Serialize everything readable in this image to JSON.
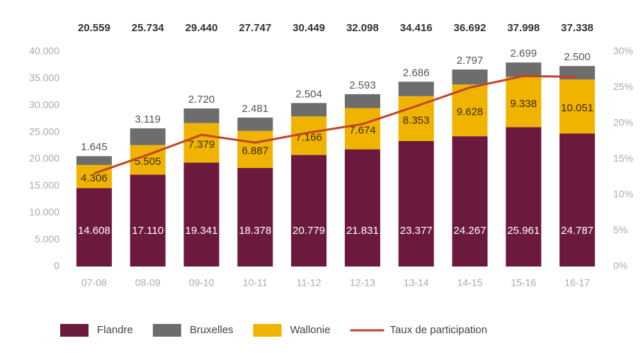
{
  "chart_data": {
    "type": "bar",
    "stacked": true,
    "categories": [
      "07-08",
      "08-09",
      "09-10",
      "10-11",
      "11-12",
      "12-13",
      "13-14",
      "14-15",
      "15-16",
      "16-17"
    ],
    "series": [
      {
        "name": "Flandre",
        "color": "#6b1a3e",
        "values": [
          14608,
          17110,
          19341,
          18378,
          20779,
          21831,
          23377,
          24267,
          25961,
          24787
        ],
        "value_labels": [
          "14.608",
          "17.110",
          "19.341",
          "18.378",
          "20.779",
          "21.831",
          "23.377",
          "24.267",
          "25.961",
          "24.787"
        ]
      },
      {
        "name": "Wallonie",
        "color": "#f0b400",
        "values": [
          4306,
          5505,
          7379,
          6887,
          7166,
          7674,
          8353,
          9628,
          9338,
          10051
        ],
        "value_labels": [
          "4.306",
          "5.505",
          "7.379",
          "6.887",
          "7.166",
          "7.674",
          "8.353",
          "9.628",
          "9.338",
          "10.051"
        ]
      },
      {
        "name": "Bruxelles",
        "color": "#6d6d6d",
        "values": [
          1645,
          3119,
          2720,
          2481,
          2504,
          2593,
          2686,
          2797,
          2699,
          2500
        ],
        "value_labels": [
          "1.645",
          "3.119",
          "2.720",
          "2.481",
          "2.504",
          "2.593",
          "2.686",
          "2.797",
          "2.699",
          "2.500"
        ]
      },
      {
        "name": "Taux de participation",
        "type": "line",
        "axis": "y2",
        "color": "#c0452a",
        "values": [
          13.0,
          15.6,
          18.4,
          17.3,
          18.7,
          19.9,
          22.4,
          25.0,
          26.6,
          26.5
        ]
      }
    ],
    "totals": {
      "values": [
        20559,
        25734,
        29440,
        27747,
        30449,
        32098,
        34416,
        36692,
        37998,
        37338
      ],
      "value_labels": [
        "20.559",
        "25.734",
        "29.440",
        "27.747",
        "30.449",
        "32.098",
        "34.416",
        "36.692",
        "37.998",
        "37.338"
      ]
    },
    "legend_order": [
      0,
      2,
      1,
      3
    ],
    "ylim": [
      0,
      40000
    ],
    "yticks": [
      {
        "value": 0,
        "label": "0"
      },
      {
        "value": 5000,
        "label": "5.000"
      },
      {
        "value": 10000,
        "label": "10.000"
      },
      {
        "value": 15000,
        "label": "15.000"
      },
      {
        "value": 20000,
        "label": "20.000"
      },
      {
        "value": 25000,
        "label": "25.000"
      },
      {
        "value": 30000,
        "label": "30.000"
      },
      {
        "value": 35000,
        "label": "35.000"
      },
      {
        "value": 40000,
        "label": "40.000"
      }
    ],
    "y2lim": [
      0,
      30
    ],
    "y2ticks": [
      {
        "value": 0,
        "label": "0%"
      },
      {
        "value": 5,
        "label": "5%"
      },
      {
        "value": 10,
        "label": "10%"
      },
      {
        "value": 15,
        "label": "15%"
      },
      {
        "value": 20,
        "label": "20%"
      },
      {
        "value": 25,
        "label": "25%"
      },
      {
        "value": 30,
        "label": "30%"
      }
    ],
    "legend": "bottom"
  }
}
